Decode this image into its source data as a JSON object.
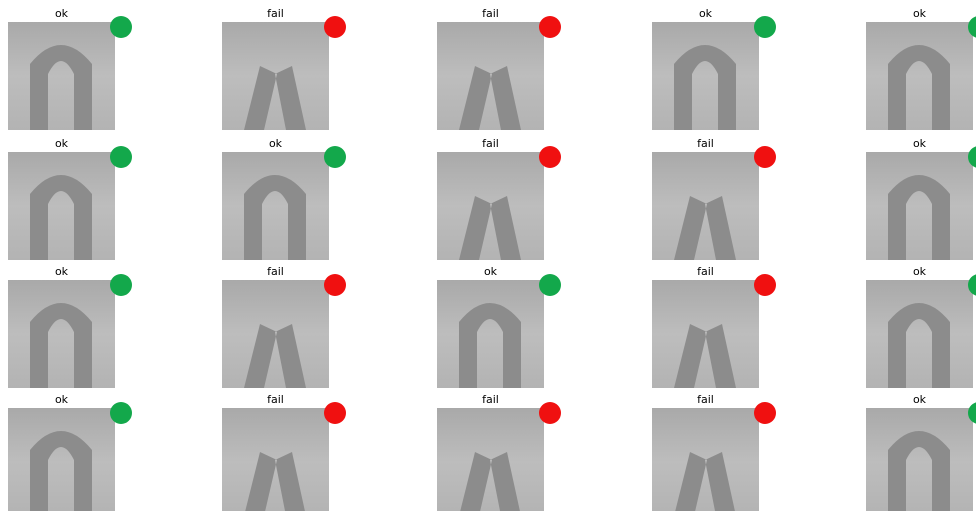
{
  "grid": {
    "columns": 5,
    "status_colors": {
      "ok": "#13a84b",
      "fail": "#f01010"
    },
    "cells": [
      {
        "label": "ok"
      },
      {
        "label": "fail"
      },
      {
        "label": "fail"
      },
      {
        "label": "ok"
      },
      {
        "label": "ok"
      },
      {
        "label": "ok"
      },
      {
        "label": "ok"
      },
      {
        "label": "fail"
      },
      {
        "label": "fail"
      },
      {
        "label": "ok"
      },
      {
        "label": "ok"
      },
      {
        "label": "fail"
      },
      {
        "label": "ok"
      },
      {
        "label": "fail"
      },
      {
        "label": "ok"
      },
      {
        "label": "ok"
      },
      {
        "label": "fail"
      },
      {
        "label": "fail"
      },
      {
        "label": "fail"
      },
      {
        "label": "ok"
      }
    ]
  }
}
